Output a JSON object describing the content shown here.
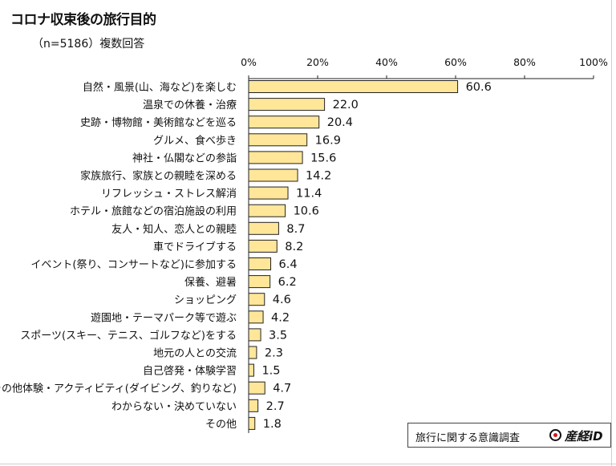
{
  "title": "コロナ収束後の旅行目的",
  "subtitle": "（n=5186）複数回答",
  "source": {
    "text": "旅行に関する意識調査",
    "brand": "産経iD",
    "brand_dot_color": "#d8141b"
  },
  "chart_data": {
    "type": "bar",
    "orientation": "horizontal",
    "title": "コロナ収束後の旅行目的",
    "subtitle": "（n=5186）複数回答",
    "xlim": [
      0,
      100
    ],
    "x_ticks": [
      "0%",
      "20%",
      "40%",
      "60%",
      "80%",
      "100%"
    ],
    "x_tick_values": [
      0,
      20,
      40,
      60,
      80,
      100
    ],
    "axis_position": "top",
    "grid": false,
    "bar_color": "#ffe699",
    "bar_border_color": "#222222",
    "categories": [
      "自然・風景(山、海など)を楽しむ",
      "温泉での休養・治療",
      "史跡・博物館・美術館などを巡る",
      "グルメ、食べ歩き",
      "神社・仏閣などの参詣",
      "家族旅行、家族との親睦を深める",
      "リフレッシュ・ストレス解消",
      "ホテル・旅館などの宿泊施設の利用",
      "友人・知人、恋人との親睦",
      "車でドライブする",
      "イベント(祭り、コンサートなど)に参加する",
      "保養、避暑",
      "ショッピング",
      "遊園地・テーマパーク等で遊ぶ",
      "スポーツ(スキー、テニス、ゴルフなど)をする",
      "地元の人との交流",
      "自己啓発・体験学習",
      "その他体験・アクティビティ(ダイビング、釣りなど)",
      "わからない・決めていない",
      "その他"
    ],
    "values": [
      60.6,
      22.0,
      20.4,
      16.9,
      15.6,
      14.2,
      11.4,
      10.6,
      8.7,
      8.2,
      6.4,
      6.2,
      4.6,
      4.2,
      3.5,
      2.3,
      1.5,
      4.7,
      2.7,
      1.8
    ],
    "value_labels": [
      "60.6",
      "22.0",
      "20.4",
      "16.9",
      "15.6",
      "14.2",
      "11.4",
      "10.6",
      "8.7",
      "8.2",
      "6.4",
      "6.2",
      "4.6",
      "4.2",
      "3.5",
      "2.3",
      "1.5",
      "4.7",
      "2.7",
      "1.8"
    ]
  }
}
